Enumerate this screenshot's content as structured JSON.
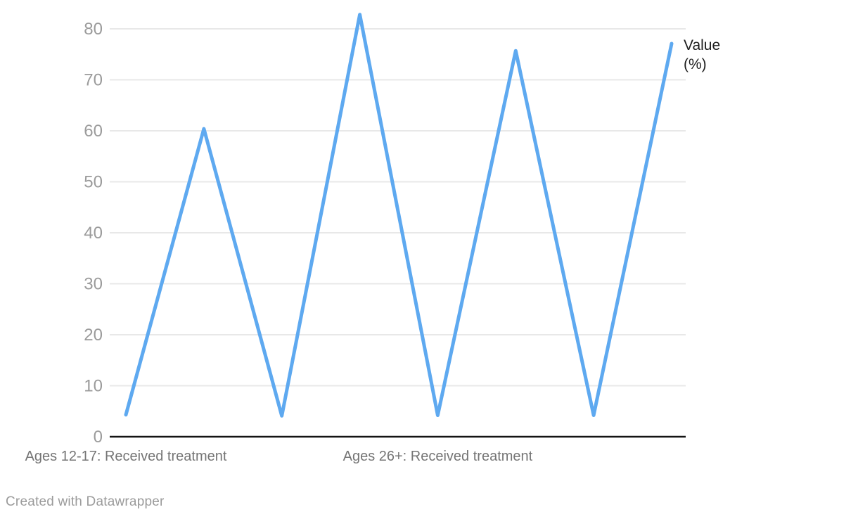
{
  "chart_data": {
    "type": "line",
    "categories": [
      "Ages 12-17: Received treatment",
      "",
      "",
      "",
      "Ages 26+: Received treatment",
      "",
      "",
      ""
    ],
    "series": [
      {
        "name": "Value (%)",
        "values": [
          4.3,
          60.4,
          4.1,
          82.8,
          4.2,
          75.7,
          4.2,
          77.1
        ]
      }
    ],
    "ylabel": "",
    "xlabel": "",
    "ylim": [
      0,
      82.8
    ],
    "yticks": [
      0,
      10,
      20,
      30,
      40,
      50,
      60,
      70,
      80
    ],
    "grid": "horizontal",
    "legend_position": "end-of-line",
    "legend_label_lines": [
      "Value",
      "(%)"
    ]
  },
  "colors": {
    "line": "#5ea9f0",
    "gridline": "#e8e8e8",
    "axis": "#141414",
    "tick_label": "#9b9b9b",
    "x_label": "#757575",
    "series_label": "#1d1d1d",
    "footer_text": "#9b9b9b",
    "background": "#ffffff"
  },
  "footer": {
    "attribution": "Created with Datawrapper"
  }
}
